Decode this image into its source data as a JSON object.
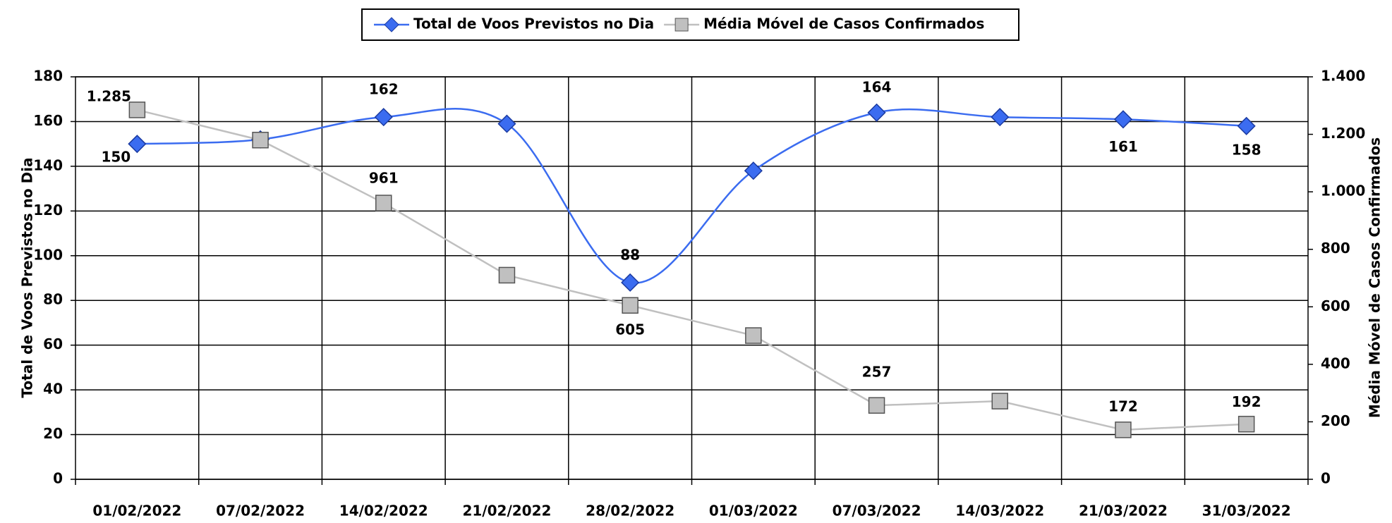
{
  "chart_data": {
    "type": "line",
    "categories": [
      "01/02/2022",
      "07/02/2022",
      "14/02/2022",
      "21/02/2022",
      "28/02/2022",
      "01/03/2022",
      "07/03/2022",
      "14/03/2022",
      "21/03/2022",
      "31/03/2022"
    ],
    "y_label": "Total de Voos Previstos no Dia",
    "y2_label": "Média Móvel de Casos Confirmados",
    "ylim": [
      0,
      180
    ],
    "yticks": [
      0,
      20,
      40,
      60,
      80,
      100,
      120,
      140,
      160,
      180
    ],
    "y2lim": [
      0,
      1400
    ],
    "y2ticks": [
      0,
      200,
      400,
      600,
      800,
      {
        "value": 1000,
        "label": "1.000"
      },
      {
        "value": 1200,
        "label": "1.200"
      },
      {
        "value": 1400,
        "label": "1.400"
      }
    ],
    "grid": true,
    "legend": "top",
    "series": [
      {
        "name": "Total de Voos Previstos no Dia",
        "color": "#3b6cf0",
        "marker": "diamond",
        "smooth": true,
        "values": [
          150,
          152,
          162,
          159,
          88,
          138,
          164,
          162,
          161,
          158
        ],
        "value_labels": [
          "150",
          null,
          "162",
          null,
          "88",
          null,
          "164",
          null,
          "161",
          "158"
        ]
      },
      {
        "name": "Média Móvel de Casos Confirmados",
        "color": "#c0c0c0",
        "marker": "square",
        "axis": "y2",
        "values": [
          1285,
          1180,
          961,
          710,
          605,
          500,
          257,
          272,
          172,
          192
        ],
        "value_labels": [
          "1.285",
          null,
          "961",
          null,
          "605",
          null,
          "257",
          null,
          "172",
          "192"
        ]
      }
    ]
  }
}
